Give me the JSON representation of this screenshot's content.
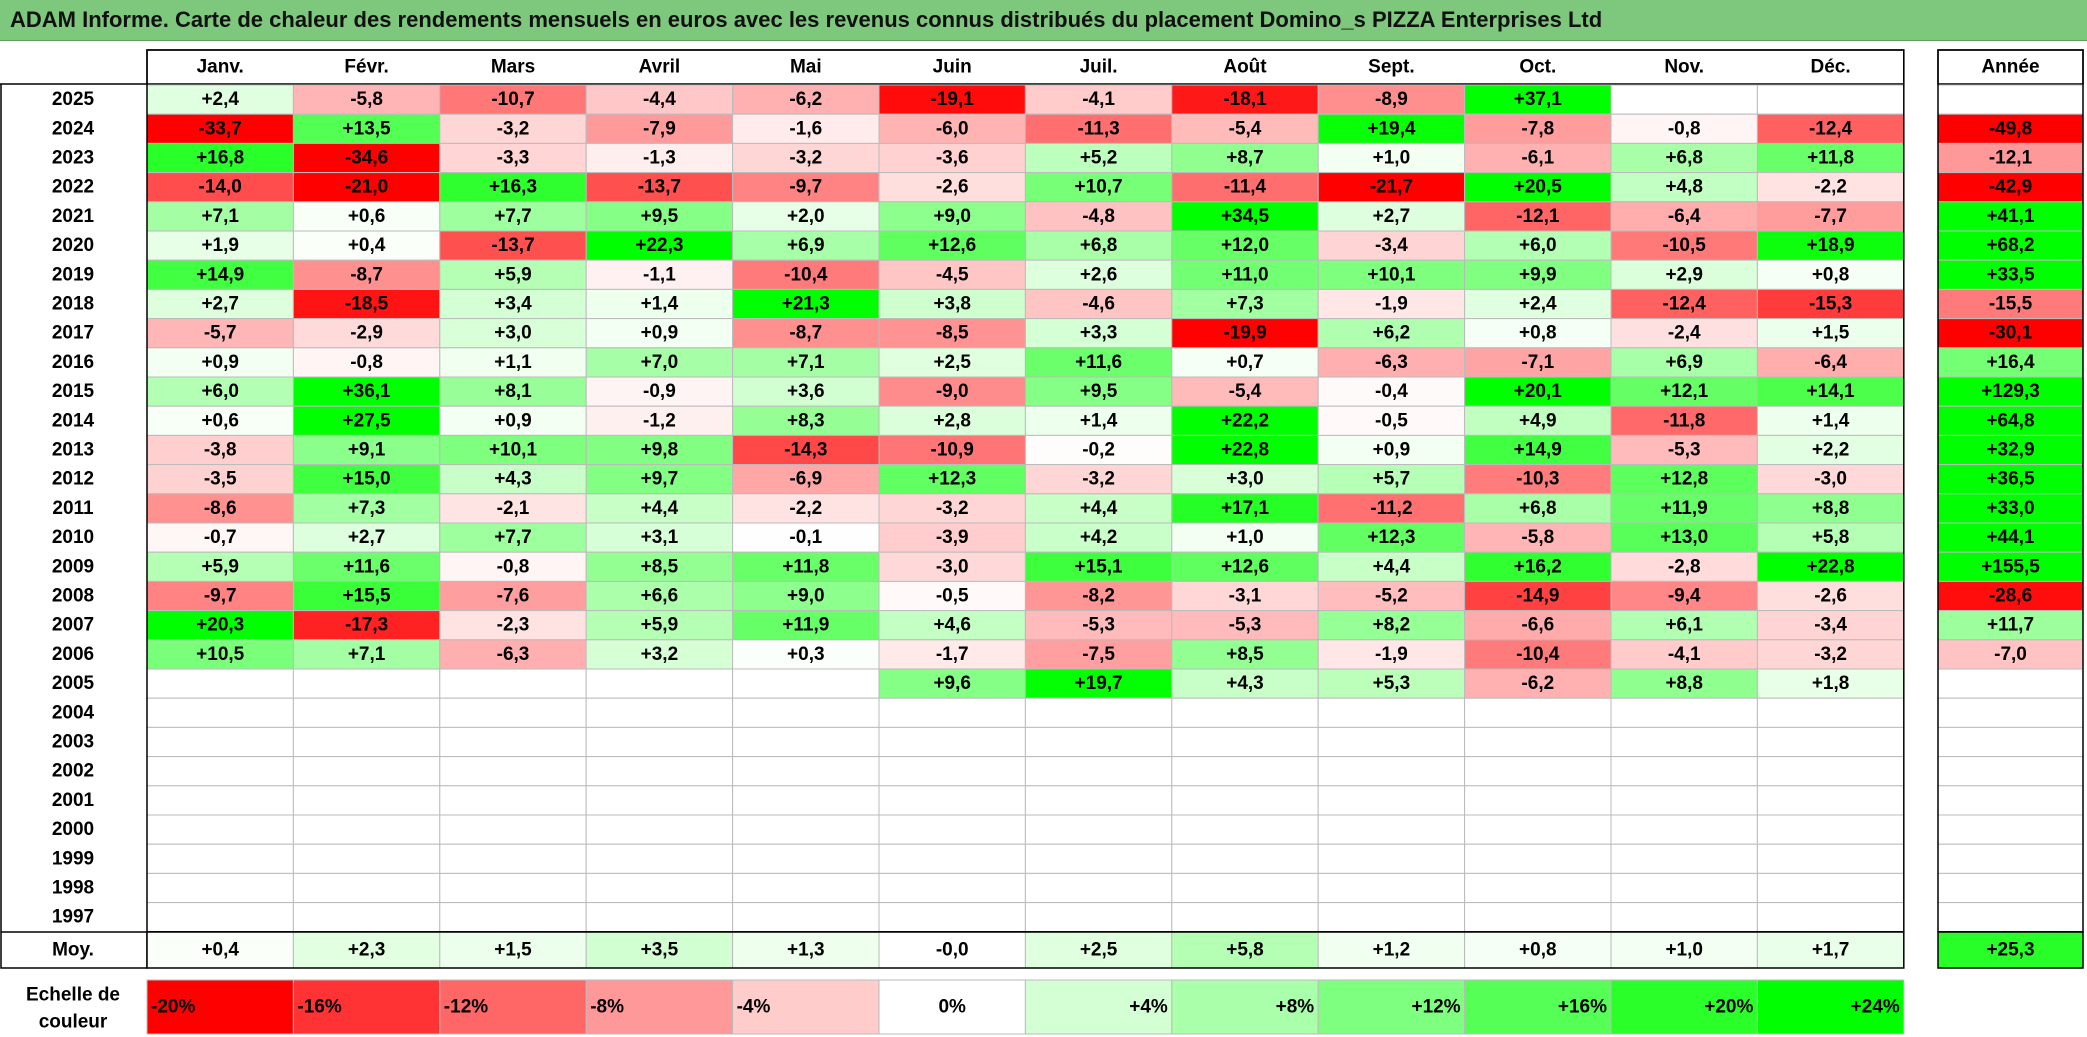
{
  "title": "ADAM Informe. Carte de chaleur des rendements mensuels en euros avec les revenus connus distribués du placement Domino_s PIZZA Enterprises Ltd",
  "chart_data": {
    "type": "heatmap",
    "months": [
      "Janv.",
      "Févr.",
      "Mars",
      "Avril",
      "Mai",
      "Juin",
      "Juil.",
      "Août",
      "Sept.",
      "Oct.",
      "Nov.",
      "Déc."
    ],
    "year_header": "Année",
    "rows": [
      {
        "year": "2025",
        "values": [
          "+2,4",
          "-5,8",
          "-10,7",
          "-4,4",
          "-6,2",
          "-19,1",
          "-4,1",
          "-18,1",
          "-8,9",
          "+37,1",
          "",
          ""
        ],
        "annual": ""
      },
      {
        "year": "2024",
        "values": [
          "-33,7",
          "+13,5",
          "-3,2",
          "-7,9",
          "-1,6",
          "-6,0",
          "-11,3",
          "-5,4",
          "+19,4",
          "-7,8",
          "-0,8",
          "-12,4"
        ],
        "annual": "-49,8"
      },
      {
        "year": "2023",
        "values": [
          "+16,8",
          "-34,6",
          "-3,3",
          "-1,3",
          "-3,2",
          "-3,6",
          "+5,2",
          "+8,7",
          "+1,0",
          "-6,1",
          "+6,8",
          "+11,8"
        ],
        "annual": "-12,1"
      },
      {
        "year": "2022",
        "values": [
          "-14,0",
          "-21,0",
          "+16,3",
          "-13,7",
          "-9,7",
          "-2,6",
          "+10,7",
          "-11,4",
          "-21,7",
          "+20,5",
          "+4,8",
          "-2,2"
        ],
        "annual": "-42,9"
      },
      {
        "year": "2021",
        "values": [
          "+7,1",
          "+0,6",
          "+7,7",
          "+9,5",
          "+2,0",
          "+9,0",
          "-4,8",
          "+34,5",
          "+2,7",
          "-12,1",
          "-6,4",
          "-7,7"
        ],
        "annual": "+41,1"
      },
      {
        "year": "2020",
        "values": [
          "+1,9",
          "+0,4",
          "-13,7",
          "+22,3",
          "+6,9",
          "+12,6",
          "+6,8",
          "+12,0",
          "-3,4",
          "+6,0",
          "-10,5",
          "+18,9"
        ],
        "annual": "+68,2"
      },
      {
        "year": "2019",
        "values": [
          "+14,9",
          "-8,7",
          "+5,9",
          "-1,1",
          "-10,4",
          "-4,5",
          "+2,6",
          "+11,0",
          "+10,1",
          "+9,9",
          "+2,9",
          "+0,8"
        ],
        "annual": "+33,5"
      },
      {
        "year": "2018",
        "values": [
          "+2,7",
          "-18,5",
          "+3,4",
          "+1,4",
          "+21,3",
          "+3,8",
          "-4,6",
          "+7,3",
          "-1,9",
          "+2,4",
          "-12,4",
          "-15,3"
        ],
        "annual": "-15,5"
      },
      {
        "year": "2017",
        "values": [
          "-5,7",
          "-2,9",
          "+3,0",
          "+0,9",
          "-8,7",
          "-8,5",
          "+3,3",
          "-19,9",
          "+6,2",
          "+0,8",
          "-2,4",
          "+1,5"
        ],
        "annual": "-30,1"
      },
      {
        "year": "2016",
        "values": [
          "+0,9",
          "-0,8",
          "+1,1",
          "+7,0",
          "+7,1",
          "+2,5",
          "+11,6",
          "+0,7",
          "-6,3",
          "-7,1",
          "+6,9",
          "-6,4"
        ],
        "annual": "+16,4"
      },
      {
        "year": "2015",
        "values": [
          "+6,0",
          "+36,1",
          "+8,1",
          "-0,9",
          "+3,6",
          "-9,0",
          "+9,5",
          "-5,4",
          "-0,4",
          "+20,1",
          "+12,1",
          "+14,1"
        ],
        "annual": "+129,3"
      },
      {
        "year": "2014",
        "values": [
          "+0,6",
          "+27,5",
          "+0,9",
          "-1,2",
          "+8,3",
          "+2,8",
          "+1,4",
          "+22,2",
          "-0,5",
          "+4,9",
          "-11,8",
          "+1,4"
        ],
        "annual": "+64,8"
      },
      {
        "year": "2013",
        "values": [
          "-3,8",
          "+9,1",
          "+10,1",
          "+9,8",
          "-14,3",
          "-10,9",
          "-0,2",
          "+22,8",
          "+0,9",
          "+14,9",
          "-5,3",
          "+2,2"
        ],
        "annual": "+32,9"
      },
      {
        "year": "2012",
        "values": [
          "-3,5",
          "+15,0",
          "+4,3",
          "+9,7",
          "-6,9",
          "+12,3",
          "-3,2",
          "+3,0",
          "+5,7",
          "-10,3",
          "+12,8",
          "-3,0"
        ],
        "annual": "+36,5"
      },
      {
        "year": "2011",
        "values": [
          "-8,6",
          "+7,3",
          "-2,1",
          "+4,4",
          "-2,2",
          "-3,2",
          "+4,4",
          "+17,1",
          "-11,2",
          "+6,8",
          "+11,9",
          "+8,8"
        ],
        "annual": "+33,0"
      },
      {
        "year": "2010",
        "values": [
          "-0,7",
          "+2,7",
          "+7,7",
          "+3,1",
          "-0,1",
          "-3,9",
          "+4,2",
          "+1,0",
          "+12,3",
          "-5,8",
          "+13,0",
          "+5,8"
        ],
        "annual": "+44,1"
      },
      {
        "year": "2009",
        "values": [
          "+5,9",
          "+11,6",
          "-0,8",
          "+8,5",
          "+11,8",
          "-3,0",
          "+15,1",
          "+12,6",
          "+4,4",
          "+16,2",
          "-2,8",
          "+22,8"
        ],
        "annual": "+155,5"
      },
      {
        "year": "2008",
        "values": [
          "-9,7",
          "+15,5",
          "-7,6",
          "+6,6",
          "+9,0",
          "-0,5",
          "-8,2",
          "-3,1",
          "-5,2",
          "-14,9",
          "-9,4",
          "-2,6"
        ],
        "annual": "-28,6"
      },
      {
        "year": "2007",
        "values": [
          "+20,3",
          "-17,3",
          "-2,3",
          "+5,9",
          "+11,9",
          "+4,6",
          "-5,3",
          "-5,3",
          "+8,2",
          "-6,6",
          "+6,1",
          "-3,4"
        ],
        "annual": "+11,7"
      },
      {
        "year": "2006",
        "values": [
          "+10,5",
          "+7,1",
          "-6,3",
          "+3,2",
          "+0,3",
          "-1,7",
          "-7,5",
          "+8,5",
          "-1,9",
          "-10,4",
          "-4,1",
          "-3,2"
        ],
        "annual": "-7,0"
      },
      {
        "year": "2005",
        "values": [
          "",
          "",
          "",
          "",
          "",
          "+9,6",
          "+19,7",
          "+4,3",
          "+5,3",
          "-6,2",
          "+8,8",
          "+1,8"
        ],
        "annual": ""
      },
      {
        "year": "2004",
        "values": [
          "",
          "",
          "",
          "",
          "",
          "",
          "",
          "",
          "",
          "",
          "",
          ""
        ],
        "annual": ""
      },
      {
        "year": "2003",
        "values": [
          "",
          "",
          "",
          "",
          "",
          "",
          "",
          "",
          "",
          "",
          "",
          ""
        ],
        "annual": ""
      },
      {
        "year": "2002",
        "values": [
          "",
          "",
          "",
          "",
          "",
          "",
          "",
          "",
          "",
          "",
          "",
          ""
        ],
        "annual": ""
      },
      {
        "year": "2001",
        "values": [
          "",
          "",
          "",
          "",
          "",
          "",
          "",
          "",
          "",
          "",
          "",
          ""
        ],
        "annual": ""
      },
      {
        "year": "2000",
        "values": [
          "",
          "",
          "",
          "",
          "",
          "",
          "",
          "",
          "",
          "",
          "",
          ""
        ],
        "annual": ""
      },
      {
        "year": "1999",
        "values": [
          "",
          "",
          "",
          "",
          "",
          "",
          "",
          "",
          "",
          "",
          "",
          ""
        ],
        "annual": ""
      },
      {
        "year": "1998",
        "values": [
          "",
          "",
          "",
          "",
          "",
          "",
          "",
          "",
          "",
          "",
          "",
          ""
        ],
        "annual": ""
      },
      {
        "year": "1997",
        "values": [
          "",
          "",
          "",
          "",
          "",
          "",
          "",
          "",
          "",
          "",
          "",
          ""
        ],
        "annual": ""
      }
    ],
    "average": {
      "label": "Moy.",
      "values": [
        "+0,4",
        "+2,3",
        "+1,5",
        "+3,5",
        "+1,3",
        "-0,0",
        "+2,5",
        "+5,8",
        "+1,2",
        "+0,8",
        "+1,0",
        "+1,7"
      ],
      "annual": "+25,3"
    },
    "scale": {
      "label_line1": "Echelle de",
      "label_line2": "couleur",
      "items": [
        {
          "label": "-20%",
          "value": -20,
          "color": "#ff0000"
        },
        {
          "label": "-16%",
          "value": -16,
          "color": "#ff3333"
        },
        {
          "label": "-12%",
          "value": -12,
          "color": "#ff6666"
        },
        {
          "label": "-8%",
          "value": -8,
          "color": "#ff9999"
        },
        {
          "label": "-4%",
          "value": -4,
          "color": "#ffcccc"
        },
        {
          "label": "0%",
          "value": 0,
          "color": "#ffffff"
        },
        {
          "label": "+4%",
          "value": 4,
          "color": "#d4ffd4"
        },
        {
          "label": "+8%",
          "value": 8,
          "color": "#aaffaa"
        },
        {
          "label": "+12%",
          "value": 12,
          "color": "#7fff7f"
        },
        {
          "label": "+16%",
          "value": 16,
          "color": "#55ff55"
        },
        {
          "label": "+20%",
          "value": 20,
          "color": "#2aff2a"
        },
        {
          "label": "+24%",
          "value": 24,
          "color": "#00ff00"
        }
      ]
    },
    "colors": {
      "negative_max": "#ff0000",
      "neutral": "#ffffff",
      "positive_max": "#00ff00",
      "title_bar": "#7ec87e"
    }
  }
}
